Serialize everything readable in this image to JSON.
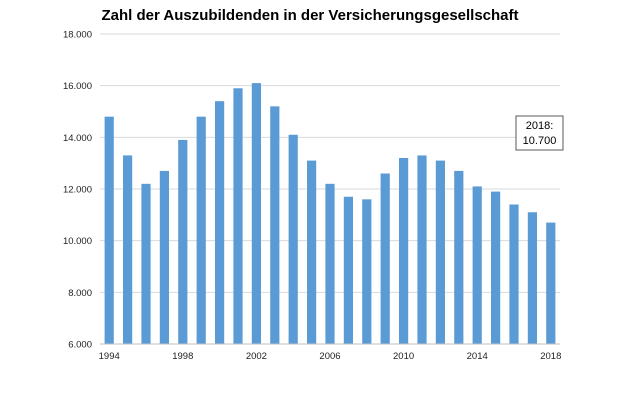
{
  "chart_data": {
    "type": "bar",
    "title": "Zahl der Auszubildenden in der Versicherungsgesellschaft",
    "xlabel": "",
    "ylabel": "",
    "categories": [
      "1994",
      "1995",
      "1996",
      "1997",
      "1998",
      "1999",
      "2000",
      "2001",
      "2002",
      "2003",
      "2004",
      "2005",
      "2006",
      "2007",
      "2008",
      "2009",
      "2010",
      "2011",
      "2012",
      "2013",
      "2014",
      "2015",
      "2016",
      "2017",
      "2018"
    ],
    "values": [
      14800,
      13300,
      12200,
      12700,
      13900,
      14800,
      15400,
      15900,
      16100,
      15200,
      14100,
      13100,
      12200,
      11700,
      11600,
      12600,
      13200,
      13300,
      13100,
      12700,
      12100,
      11900,
      11400,
      11100,
      10700
    ],
    "x_tick_labels": [
      "1994",
      "1998",
      "2002",
      "2006",
      "2010",
      "2014",
      "2018"
    ],
    "ylim": [
      6000,
      18000
    ],
    "y_ticks": [
      6000,
      8000,
      10000,
      12000,
      14000,
      16000,
      18000
    ],
    "y_tick_labels": [
      "6.000",
      "8.000",
      "10.000",
      "12.000",
      "14.000",
      "16.000",
      "18.000"
    ],
    "grid": "horizontal",
    "bar_color": "#5b9bd5",
    "grid_color": "#d9d9d9",
    "annotation": {
      "line1": "2018:",
      "line2": "10.700",
      "category": "2018"
    }
  }
}
